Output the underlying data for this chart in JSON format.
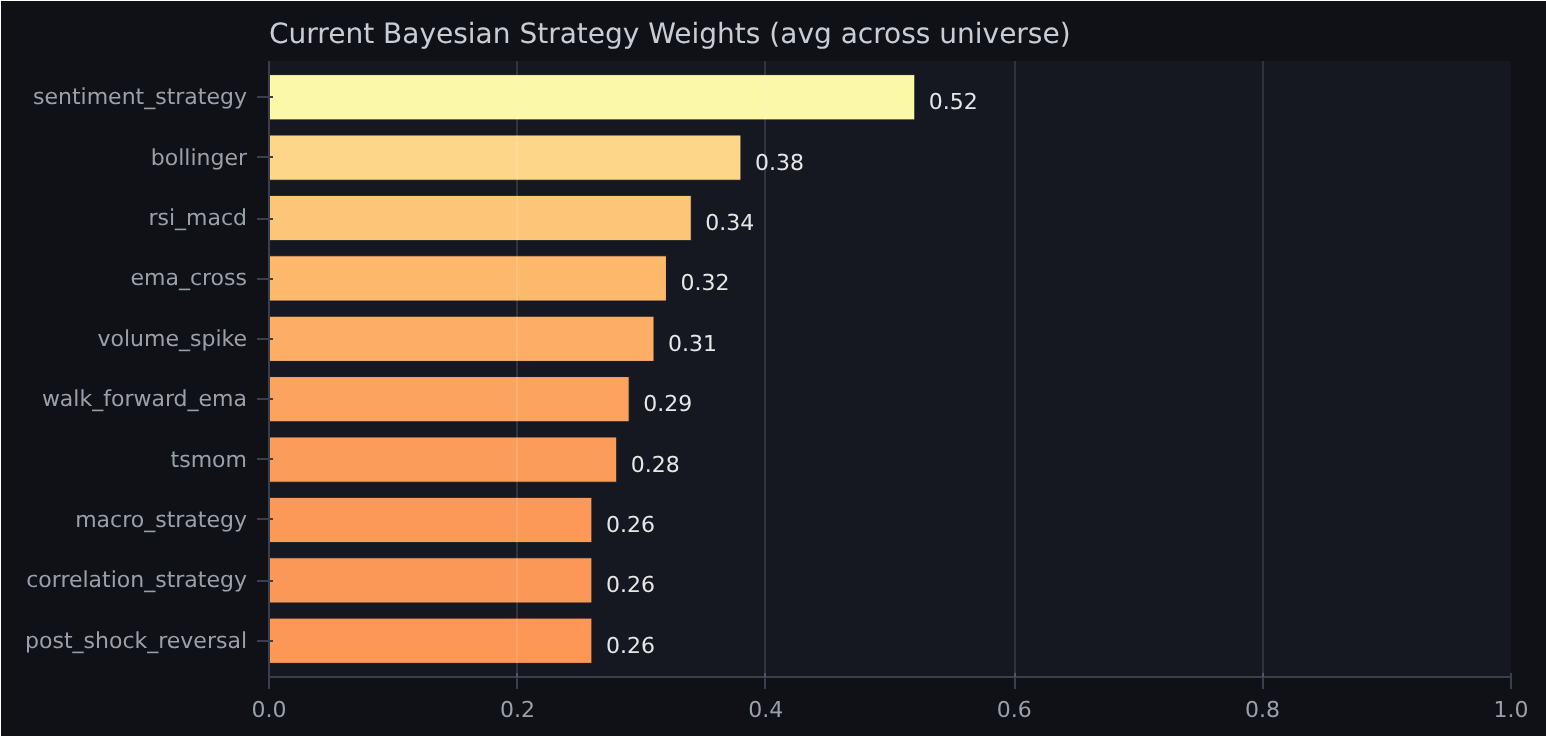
{
  "chart_data": {
    "type": "bar",
    "orientation": "horizontal",
    "title": "Current Bayesian Strategy Weights (avg across universe)",
    "categories": [
      "sentiment_strategy",
      "bollinger",
      "rsi_macd",
      "ema_cross",
      "volume_spike",
      "walk_forward_ema",
      "tsmom",
      "macro_strategy",
      "correlation_strategy",
      "post_shock_reversal"
    ],
    "values": [
      0.52,
      0.38,
      0.34,
      0.32,
      0.31,
      0.29,
      0.28,
      0.26,
      0.26,
      0.26
    ],
    "colors": [
      "#fbf8a8",
      "#fdd68a",
      "#fdc577",
      "#fdb86c",
      "#fdad65",
      "#fca45f",
      "#fc9c5a",
      "#fc9858",
      "#fc9857",
      "#fc9756"
    ],
    "xlim": [
      0,
      1.0
    ],
    "xticks": [
      {
        "value": 0,
        "label": "0.0"
      },
      0.2,
      0.4,
      0.6,
      0.8,
      {
        "value": 1,
        "label": "1.0"
      }
    ],
    "grid": "x",
    "data_labels": true
  }
}
